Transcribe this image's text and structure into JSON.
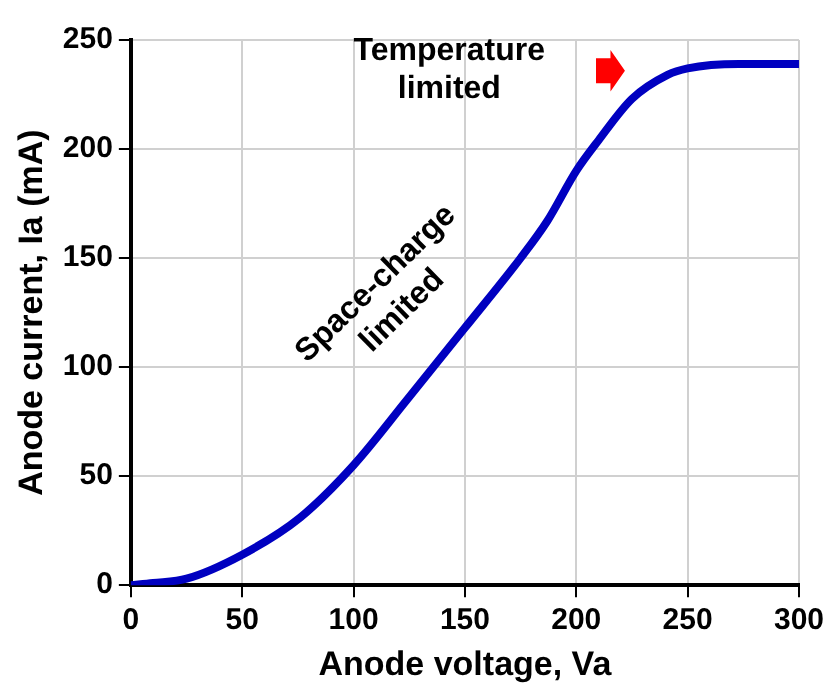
{
  "chart_data": {
    "type": "line",
    "xlabel": "Anode voltage, Va",
    "ylabel": "Anode current, Ia (mA)",
    "x": [
      0,
      10,
      25,
      50,
      76,
      100,
      124,
      150,
      175,
      187,
      200,
      210,
      225,
      241,
      250,
      273,
      300
    ],
    "series": [
      {
        "color": "#0000c0",
        "values": [
          0,
          1,
          3,
          14,
          31,
          55,
          85,
          118,
          150,
          167,
          190,
          204,
          223,
          234,
          237,
          239,
          239
        ]
      }
    ],
    "xlim": [
      0,
      300
    ],
    "xticks": [
      0,
      50,
      100,
      150,
      200,
      250,
      300
    ],
    "ylim": [
      0,
      250
    ],
    "yticks": [
      0,
      50,
      100,
      150,
      200,
      250
    ],
    "grid": true,
    "marker": "none",
    "line_style": "solid",
    "legend": false,
    "annotations": [
      "Temperature limited",
      "Space-charge limited"
    ]
  }
}
